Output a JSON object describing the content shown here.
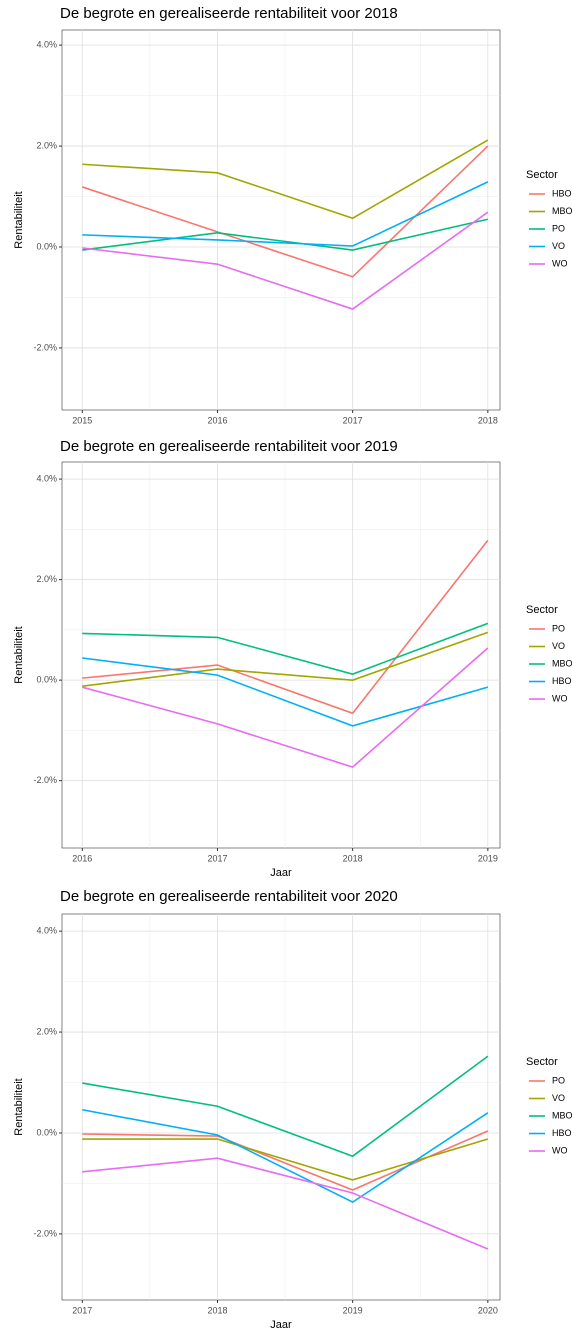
{
  "chart_data": [
    {
      "type": "line",
      "title": "De begrote en gerealiseerde rentabiliteit voor 2018",
      "y_label": "Rentabiliteit",
      "legend_title": "Sector",
      "x": [
        2015,
        2016,
        2017,
        2018
      ],
      "xlim": [
        2014.85,
        2018.09
      ],
      "xticks": [
        2015,
        2016,
        2017,
        2018
      ],
      "ylim": [
        -3.23,
        4.3
      ],
      "yticks": [
        {
          "value": 4,
          "label": "4.0%"
        },
        {
          "value": 2,
          "label": "2.0%"
        },
        {
          "value": 0,
          "label": "0.0%"
        },
        {
          "value": -2,
          "label": "-2.0%"
        }
      ],
      "grid": true,
      "legend": "right",
      "series": [
        {
          "name": "HBO",
          "color": "#f8766d",
          "values": [
            1.19,
            0.3,
            -0.59,
            2.0
          ]
        },
        {
          "name": "MBO",
          "color": "#a3a500",
          "values": [
            1.64,
            1.47,
            0.57,
            2.12
          ]
        },
        {
          "name": "PO",
          "color": "#00bf7d",
          "values": [
            -0.06,
            0.28,
            -0.06,
            0.55
          ]
        },
        {
          "name": "VO",
          "color": "#00b0f6",
          "values": [
            0.24,
            0.14,
            0.02,
            1.29
          ]
        },
        {
          "name": "WO",
          "color": "#e76bf3",
          "values": [
            -0.02,
            -0.34,
            -1.23,
            0.69
          ]
        }
      ]
    },
    {
      "type": "line",
      "title": "De begrote en gerealiseerde rentabiliteit voor 2019",
      "y_label": "Rentabiliteit",
      "x_label": "Jaar",
      "legend_title": "Sector",
      "x": [
        2016,
        2017,
        2018,
        2019
      ],
      "xlim": [
        2015.85,
        2019.09
      ],
      "xticks": [
        2016,
        2017,
        2018,
        2019
      ],
      "ylim": [
        -3.34,
        4.34
      ],
      "yticks": [
        {
          "value": 4,
          "label": "4.0%"
        },
        {
          "value": 2,
          "label": "2.0%"
        },
        {
          "value": 0,
          "label": "0.0%"
        },
        {
          "value": -2,
          "label": "-2.0%"
        }
      ],
      "grid": true,
      "legend": "right",
      "series": [
        {
          "name": "PO",
          "color": "#f8766d",
          "values": [
            0.04,
            0.3,
            -0.66,
            2.78
          ]
        },
        {
          "name": "VO",
          "color": "#a3a500",
          "values": [
            -0.12,
            0.22,
            0.0,
            0.95
          ]
        },
        {
          "name": "MBO",
          "color": "#00bf7d",
          "values": [
            0.93,
            0.85,
            0.12,
            1.13
          ]
        },
        {
          "name": "HBO",
          "color": "#00b0f6",
          "values": [
            0.44,
            0.1,
            -0.91,
            -0.14
          ]
        },
        {
          "name": "WO",
          "color": "#e76bf3",
          "values": [
            -0.14,
            -0.87,
            -1.73,
            0.64
          ]
        }
      ]
    },
    {
      "type": "line",
      "title": "De begrote en gerealiseerde rentabiliteit voor 2020",
      "y_label": "Rentabiliteit",
      "x_label": "Jaar",
      "legend_title": "Sector",
      "x": [
        2017,
        2018,
        2019,
        2020
      ],
      "xlim": [
        2016.85,
        2020.09
      ],
      "xticks": [
        2017,
        2018,
        2019,
        2020
      ],
      "ylim": [
        -3.31,
        4.34
      ],
      "yticks": [
        {
          "value": 4,
          "label": "4.0%"
        },
        {
          "value": 2,
          "label": "2.0%"
        },
        {
          "value": 0,
          "label": "0.0%"
        },
        {
          "value": -2,
          "label": "-2.0%"
        }
      ],
      "grid": true,
      "legend": "right",
      "series": [
        {
          "name": "PO",
          "color": "#f8766d",
          "values": [
            -0.02,
            -0.06,
            -1.13,
            0.04
          ]
        },
        {
          "name": "VO",
          "color": "#a3a500",
          "values": [
            -0.12,
            -0.12,
            -0.93,
            -0.12
          ]
        },
        {
          "name": "MBO",
          "color": "#00bf7d",
          "values": [
            0.99,
            0.53,
            -0.46,
            1.52
          ]
        },
        {
          "name": "HBO",
          "color": "#00b0f6",
          "values": [
            0.46,
            -0.04,
            -1.37,
            0.4
          ]
        },
        {
          "name": "WO",
          "color": "#e76bf3",
          "values": [
            -0.77,
            -0.5,
            -1.19,
            -2.3
          ]
        }
      ]
    }
  ]
}
